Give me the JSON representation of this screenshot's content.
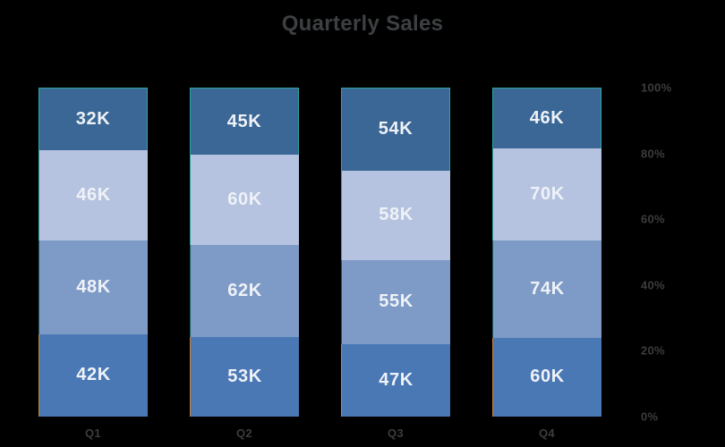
{
  "colors": {
    "background": "#000000",
    "title_text": "#3d4043",
    "axis_text": "#3c3c3c",
    "value_text": "#eff2f7"
  },
  "chart_data": {
    "type": "bar",
    "stacked": true,
    "percent_axis": true,
    "title": "Quarterly Sales",
    "categories": [
      "Q1",
      "Q2",
      "Q3",
      "Q4"
    ],
    "series": [
      {
        "name": "bottom",
        "color": "#4a78b5",
        "accent": "#c5823b",
        "accent_sides": [
          "left"
        ],
        "values": [
          42,
          53,
          47,
          60
        ]
      },
      {
        "name": "lower-middle",
        "color": "#7e9bc7",
        "accent": "#1c5f5e",
        "accent_sides": [
          "left"
        ],
        "values": [
          48,
          62,
          55,
          74
        ]
      },
      {
        "name": "upper-middle",
        "color": "#b5c3e0",
        "accent": "#2da7a2",
        "accent_sides": [
          "left"
        ],
        "values": [
          46,
          60,
          58,
          70
        ]
      },
      {
        "name": "top",
        "color": "#3a6795",
        "accent": "#2da7a2",
        "accent_sides": [
          "top",
          "left",
          "right"
        ],
        "values": [
          32,
          45,
          54,
          46
        ]
      }
    ],
    "value_suffix": "K",
    "segment_labels": [
      [
        "42K",
        "48K",
        "46K",
        "32K"
      ],
      [
        "53K",
        "62K",
        "60K",
        "45K"
      ],
      [
        "47K",
        "55K",
        "58K",
        "54K"
      ],
      [
        "60K",
        "74K",
        "70K",
        "46K"
      ]
    ],
    "x_axis": {
      "tick_labels": [
        "Q1",
        "Q2",
        "Q3",
        "Q4"
      ]
    },
    "y_axis": {
      "position": "right",
      "range": [
        0,
        100
      ],
      "tick_labels": [
        "0%",
        "20%",
        "40%",
        "60%",
        "80%",
        "100%"
      ]
    },
    "legend": "none",
    "grid": false
  }
}
